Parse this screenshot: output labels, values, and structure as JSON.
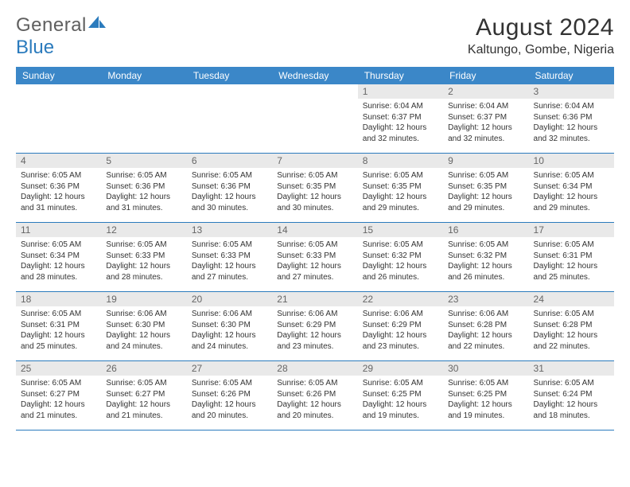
{
  "brand": {
    "part1": "General",
    "part2": "Blue"
  },
  "title": "August 2024",
  "location": "Kaltungo, Gombe, Nigeria",
  "colors": {
    "header_bg": "#3b87c8",
    "week_border": "#2b7bbd",
    "daynum_bg": "#e9e9e9",
    "text": "#333333",
    "logo_gray": "#5f5f5f",
    "logo_blue": "#2b7bbd"
  },
  "daynames": [
    "Sunday",
    "Monday",
    "Tuesday",
    "Wednesday",
    "Thursday",
    "Friday",
    "Saturday"
  ],
  "weeks": [
    [
      {
        "n": "",
        "empty": true
      },
      {
        "n": "",
        "empty": true
      },
      {
        "n": "",
        "empty": true
      },
      {
        "n": "",
        "empty": true
      },
      {
        "n": "1",
        "sunrise": "Sunrise: 6:04 AM",
        "sunset": "Sunset: 6:37 PM",
        "daylight": "Daylight: 12 hours and 32 minutes."
      },
      {
        "n": "2",
        "sunrise": "Sunrise: 6:04 AM",
        "sunset": "Sunset: 6:37 PM",
        "daylight": "Daylight: 12 hours and 32 minutes."
      },
      {
        "n": "3",
        "sunrise": "Sunrise: 6:04 AM",
        "sunset": "Sunset: 6:36 PM",
        "daylight": "Daylight: 12 hours and 32 minutes."
      }
    ],
    [
      {
        "n": "4",
        "sunrise": "Sunrise: 6:05 AM",
        "sunset": "Sunset: 6:36 PM",
        "daylight": "Daylight: 12 hours and 31 minutes."
      },
      {
        "n": "5",
        "sunrise": "Sunrise: 6:05 AM",
        "sunset": "Sunset: 6:36 PM",
        "daylight": "Daylight: 12 hours and 31 minutes."
      },
      {
        "n": "6",
        "sunrise": "Sunrise: 6:05 AM",
        "sunset": "Sunset: 6:36 PM",
        "daylight": "Daylight: 12 hours and 30 minutes."
      },
      {
        "n": "7",
        "sunrise": "Sunrise: 6:05 AM",
        "sunset": "Sunset: 6:35 PM",
        "daylight": "Daylight: 12 hours and 30 minutes."
      },
      {
        "n": "8",
        "sunrise": "Sunrise: 6:05 AM",
        "sunset": "Sunset: 6:35 PM",
        "daylight": "Daylight: 12 hours and 29 minutes."
      },
      {
        "n": "9",
        "sunrise": "Sunrise: 6:05 AM",
        "sunset": "Sunset: 6:35 PM",
        "daylight": "Daylight: 12 hours and 29 minutes."
      },
      {
        "n": "10",
        "sunrise": "Sunrise: 6:05 AM",
        "sunset": "Sunset: 6:34 PM",
        "daylight": "Daylight: 12 hours and 29 minutes."
      }
    ],
    [
      {
        "n": "11",
        "sunrise": "Sunrise: 6:05 AM",
        "sunset": "Sunset: 6:34 PM",
        "daylight": "Daylight: 12 hours and 28 minutes."
      },
      {
        "n": "12",
        "sunrise": "Sunrise: 6:05 AM",
        "sunset": "Sunset: 6:33 PM",
        "daylight": "Daylight: 12 hours and 28 minutes."
      },
      {
        "n": "13",
        "sunrise": "Sunrise: 6:05 AM",
        "sunset": "Sunset: 6:33 PM",
        "daylight": "Daylight: 12 hours and 27 minutes."
      },
      {
        "n": "14",
        "sunrise": "Sunrise: 6:05 AM",
        "sunset": "Sunset: 6:33 PM",
        "daylight": "Daylight: 12 hours and 27 minutes."
      },
      {
        "n": "15",
        "sunrise": "Sunrise: 6:05 AM",
        "sunset": "Sunset: 6:32 PM",
        "daylight": "Daylight: 12 hours and 26 minutes."
      },
      {
        "n": "16",
        "sunrise": "Sunrise: 6:05 AM",
        "sunset": "Sunset: 6:32 PM",
        "daylight": "Daylight: 12 hours and 26 minutes."
      },
      {
        "n": "17",
        "sunrise": "Sunrise: 6:05 AM",
        "sunset": "Sunset: 6:31 PM",
        "daylight": "Daylight: 12 hours and 25 minutes."
      }
    ],
    [
      {
        "n": "18",
        "sunrise": "Sunrise: 6:05 AM",
        "sunset": "Sunset: 6:31 PM",
        "daylight": "Daylight: 12 hours and 25 minutes."
      },
      {
        "n": "19",
        "sunrise": "Sunrise: 6:06 AM",
        "sunset": "Sunset: 6:30 PM",
        "daylight": "Daylight: 12 hours and 24 minutes."
      },
      {
        "n": "20",
        "sunrise": "Sunrise: 6:06 AM",
        "sunset": "Sunset: 6:30 PM",
        "daylight": "Daylight: 12 hours and 24 minutes."
      },
      {
        "n": "21",
        "sunrise": "Sunrise: 6:06 AM",
        "sunset": "Sunset: 6:29 PM",
        "daylight": "Daylight: 12 hours and 23 minutes."
      },
      {
        "n": "22",
        "sunrise": "Sunrise: 6:06 AM",
        "sunset": "Sunset: 6:29 PM",
        "daylight": "Daylight: 12 hours and 23 minutes."
      },
      {
        "n": "23",
        "sunrise": "Sunrise: 6:06 AM",
        "sunset": "Sunset: 6:28 PM",
        "daylight": "Daylight: 12 hours and 22 minutes."
      },
      {
        "n": "24",
        "sunrise": "Sunrise: 6:05 AM",
        "sunset": "Sunset: 6:28 PM",
        "daylight": "Daylight: 12 hours and 22 minutes."
      }
    ],
    [
      {
        "n": "25",
        "sunrise": "Sunrise: 6:05 AM",
        "sunset": "Sunset: 6:27 PM",
        "daylight": "Daylight: 12 hours and 21 minutes."
      },
      {
        "n": "26",
        "sunrise": "Sunrise: 6:05 AM",
        "sunset": "Sunset: 6:27 PM",
        "daylight": "Daylight: 12 hours and 21 minutes."
      },
      {
        "n": "27",
        "sunrise": "Sunrise: 6:05 AM",
        "sunset": "Sunset: 6:26 PM",
        "daylight": "Daylight: 12 hours and 20 minutes."
      },
      {
        "n": "28",
        "sunrise": "Sunrise: 6:05 AM",
        "sunset": "Sunset: 6:26 PM",
        "daylight": "Daylight: 12 hours and 20 minutes."
      },
      {
        "n": "29",
        "sunrise": "Sunrise: 6:05 AM",
        "sunset": "Sunset: 6:25 PM",
        "daylight": "Daylight: 12 hours and 19 minutes."
      },
      {
        "n": "30",
        "sunrise": "Sunrise: 6:05 AM",
        "sunset": "Sunset: 6:25 PM",
        "daylight": "Daylight: 12 hours and 19 minutes."
      },
      {
        "n": "31",
        "sunrise": "Sunrise: 6:05 AM",
        "sunset": "Sunset: 6:24 PM",
        "daylight": "Daylight: 12 hours and 18 minutes."
      }
    ]
  ]
}
